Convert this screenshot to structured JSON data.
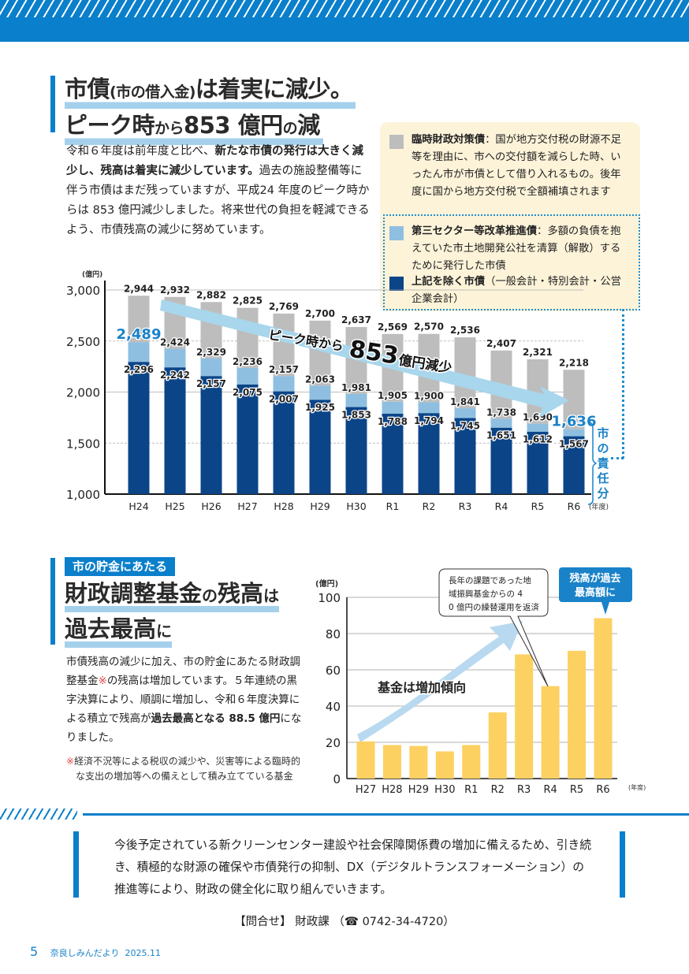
{
  "header": {
    "title_line1_a": "市債",
    "title_line1_small": "(市の借入金)",
    "title_line1_b": "は着実に減少。",
    "title_line2_a": "ピーク時",
    "title_line2_small": "から",
    "title_line2_b": "853 億円",
    "title_line2_small2": "の",
    "title_line2_c": "減"
  },
  "intro": {
    "p1": "令和６年度は前年度と比べ、",
    "p1_bold": "新たな市債の発行は大きく減少し、残高は着実に減少しています。",
    "p2": "過去の施設整備等に伴う市債はまだ残っていますが、平成24 年度のピーク時からは 853 億円減少しました。将来世代の負担を軽減できるよう、市債残高の減少に努めています。"
  },
  "legend": {
    "items": [
      {
        "name": "臨時財政対策債",
        "desc": "：国が地方交付税の財源不足等を理由に、市への交付額を減らした時、いったん市が市債として借り入れるもの。後年度に国から地方交付税で全額補填されます",
        "color": "#bdbdbd"
      },
      {
        "name": "第三セクター等改革推進債",
        "desc": "：多額の負債を抱えていた市土地開発公社を清算（解散）するために発行した市債",
        "color": "#8fbfe0"
      },
      {
        "name": "上記を除く市債",
        "desc": "（一般会計・特別会計・公営企業会計）",
        "color": "#0b4588"
      }
    ]
  },
  "chart_data": [
    {
      "type": "bar",
      "stacked": true,
      "title": "市債残高",
      "unit_label": "(億円)",
      "xlabel_suffix": "(年度)",
      "ylim": [
        1000,
        3000
      ],
      "yticks": [
        "1,000",
        "1,500",
        "2,000",
        "2,500",
        "3,000"
      ],
      "ytick_values": [
        1000,
        1500,
        2000,
        2500,
        3000
      ],
      "grid": true,
      "categories": [
        "H24",
        "H25",
        "H26",
        "H27",
        "H28",
        "H29",
        "H30",
        "R1",
        "R2",
        "R3",
        "R4",
        "R5",
        "R6"
      ],
      "cumulative_totals": {
        "base": [
          2296,
          2242,
          2157,
          2075,
          2007,
          1925,
          1853,
          1788,
          1794,
          1745,
          1651,
          1612,
          1567
        ],
        "base_plus_third_sector": [
          2489,
          2424,
          2329,
          2236,
          2157,
          2063,
          1981,
          1905,
          1900,
          1841,
          1738,
          1690,
          1636
        ],
        "total": [
          2944,
          2932,
          2882,
          2825,
          2769,
          2700,
          2637,
          2569,
          2570,
          2536,
          2407,
          2321,
          2218
        ]
      },
      "series": [
        {
          "name": "上記を除く市債",
          "color": "#0b4588",
          "values": [
            2296,
            2242,
            2157,
            2075,
            2007,
            1925,
            1853,
            1788,
            1794,
            1745,
            1651,
            1612,
            1567
          ]
        },
        {
          "name": "第三セクター等改革推進債",
          "color": "#8fbfe0",
          "values": [
            193,
            182,
            172,
            161,
            150,
            138,
            128,
            117,
            106,
            96,
            87,
            78,
            69
          ]
        },
        {
          "name": "臨時財政対策債",
          "color": "#bdbdbd",
          "values": [
            455,
            508,
            553,
            589,
            612,
            637,
            656,
            664,
            670,
            695,
            669,
            631,
            582
          ]
        }
      ],
      "highlight_labels": {
        "first_mid": "2,489",
        "last_mid": "1,636"
      },
      "annotation": {
        "prefix": "ピーク時から",
        "number": "853",
        "suffix": "億円減少"
      },
      "bracket_label": "市の責任分",
      "legend_position": "top-right"
    },
    {
      "type": "bar",
      "title": "財政調整基金残高",
      "unit_label": "(億円)",
      "xlabel_suffix": "(年度)",
      "ylim": [
        0,
        100
      ],
      "yticks": [
        "0",
        "20",
        "40",
        "60",
        "80",
        "100"
      ],
      "ytick_values": [
        0,
        20,
        40,
        60,
        80,
        100
      ],
      "grid": true,
      "categories": [
        "H27",
        "H28",
        "H29",
        "H30",
        "R1",
        "R2",
        "R3",
        "R4",
        "R5",
        "R6"
      ],
      "values": [
        20.5,
        18.5,
        18,
        15,
        18.5,
        36.5,
        68.5,
        51,
        70.5,
        88.5
      ],
      "color": "#fdd062",
      "trend_label": "基金は増加傾向",
      "callout": "長年の課題であった地域振興基金からの 40 億円の繰替運用を返済",
      "highlight_callout_line1": "残高が過去",
      "highlight_callout_line2": "最高額に"
    }
  ],
  "section2": {
    "tag": "市の貯金にあたる",
    "title_line1_a": "財政調整基金",
    "title_line1_small": "の",
    "title_line1_b": "残高",
    "title_line1_small2": "は",
    "title_line2_a": "過去最高",
    "title_line2_small": "に",
    "body_a": "市債残高の減少に加え、市の貯金にあたる財政調整基金",
    "body_mark": "※",
    "body_b": "の残高は増加しています。５年連続の黒字決算により、順調に増加し、令和６年度決算による積立で残高が",
    "body_bold": "過去最高となる 88.5 億円",
    "body_c": "になりました。",
    "note_mark": "※",
    "note": "経済不況等による税収の減少や、災害等による臨時的な支出の増加等への備えとして積み立てている基金"
  },
  "closing": {
    "text": "今後予定されている新クリーンセンター建設や社会保障関係費の増加に備えるため、引き続き、積極的な財源の確保や市債発行の抑制、DX（デジタルトランスフォーメーション）の推進等により、財政の健全化に取り組んでいきます。"
  },
  "contact": {
    "label": "【問合せ】",
    "dept": "財政課",
    "phone_icon": "☎",
    "phone": "0742-34-4720"
  },
  "footer": {
    "page": "5",
    "publication": "奈良しみんだより",
    "date": "2025.11"
  }
}
